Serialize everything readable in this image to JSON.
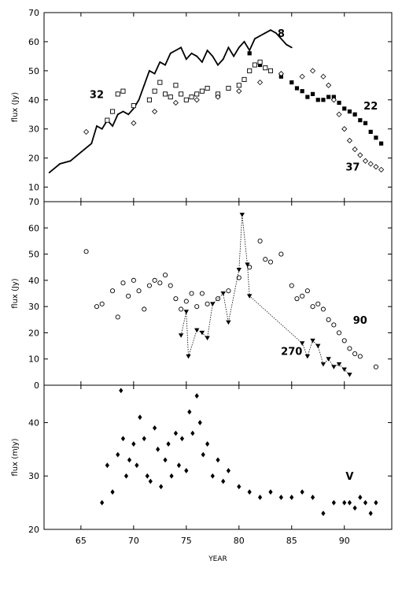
{
  "chart_data": [
    {
      "type": "scatter",
      "ylabel": "flux (Jy)",
      "ylim": [
        5,
        70
      ],
      "xlim": [
        61.5,
        94.5
      ],
      "yticks": [
        10,
        20,
        30,
        40,
        50,
        60,
        70
      ],
      "series": [
        {
          "name": "8",
          "kind": "line",
          "x": [
            62.0,
            63.0,
            64.0,
            65.0,
            66.0,
            66.5,
            67.0,
            67.5,
            68.0,
            68.5,
            69.0,
            69.5,
            70.0,
            70.5,
            71.0,
            71.5,
            72.0,
            72.5,
            73.0,
            73.5,
            74.0,
            74.5,
            75.0,
            75.5,
            76.0,
            76.5,
            77.0,
            77.5,
            78.0,
            78.5,
            79.0,
            79.5,
            80.0,
            80.5,
            81.0,
            81.5,
            82.0,
            82.5,
            83.0,
            83.5,
            84.0,
            84.5,
            85.0
          ],
          "y": [
            15,
            18,
            19,
            22,
            25,
            31,
            30,
            33,
            31,
            35,
            36,
            35,
            37,
            40,
            45,
            50,
            49,
            53,
            52,
            56,
            57,
            58,
            54,
            56,
            55,
            53,
            57,
            55,
            52,
            54,
            58,
            55,
            58,
            60,
            57,
            61,
            62,
            63,
            64,
            63,
            61,
            59,
            58
          ]
        },
        {
          "name": "22",
          "kind": "filled-squares",
          "x": [
            81.0,
            82.0,
            83.0,
            84.0,
            85.0,
            85.5,
            86.0,
            86.5,
            87.0,
            87.5,
            88.0,
            88.5,
            89.0,
            89.5,
            90.0,
            90.5,
            91.0,
            91.5,
            92.0,
            92.5,
            93.0,
            93.5
          ],
          "y": [
            56,
            52,
            50,
            48,
            46,
            44,
            43,
            41,
            42,
            40,
            40,
            41,
            41,
            39,
            37,
            36,
            35,
            33,
            32,
            29,
            27,
            25
          ]
        },
        {
          "name": "32",
          "kind": "open-squares",
          "x": [
            67.5,
            68.0,
            68.5,
            69.0,
            70.0,
            71.5,
            72.0,
            72.5,
            73.0,
            73.5,
            74.0,
            74.5,
            75.0,
            75.5,
            76.0,
            76.5,
            77.0,
            78.0,
            79.0,
            80.0,
            80.5,
            81.0,
            81.5,
            82.0,
            82.5,
            83.0
          ],
          "y": [
            33,
            36,
            42,
            43,
            38,
            40,
            43,
            46,
            42,
            41,
            45,
            42,
            40,
            41,
            42,
            43,
            44,
            42,
            44,
            45,
            47,
            50,
            52,
            53,
            51,
            50
          ]
        },
        {
          "name": "37",
          "kind": "open-diamonds",
          "x": [
            65.5,
            70.0,
            72.0,
            74.0,
            76.0,
            78.0,
            80.0,
            82.0,
            84.0,
            86.0,
            87.0,
            88.0,
            88.5,
            89.0,
            89.5,
            90.0,
            90.5,
            91.0,
            91.5,
            92.0,
            92.5,
            93.0,
            93.5
          ],
          "y": [
            29,
            32,
            36,
            39,
            40,
            41,
            43,
            46,
            49,
            48,
            50,
            48,
            45,
            40,
            35,
            30,
            26,
            23,
            21,
            19,
            18,
            17,
            16
          ]
        }
      ]
    },
    {
      "type": "scatter",
      "ylabel": "flux (Jy)",
      "ylim": [
        0,
        70
      ],
      "xlim": [
        61.5,
        94.5
      ],
      "yticks": [
        0,
        10,
        20,
        30,
        40,
        50,
        60,
        70
      ],
      "series": [
        {
          "name": "90",
          "kind": "open-circles",
          "x": [
            65.5,
            66.5,
            67.0,
            68.0,
            68.5,
            69.0,
            69.5,
            70.0,
            70.5,
            71.0,
            71.5,
            72.0,
            72.5,
            73.0,
            73.5,
            74.0,
            74.5,
            75.0,
            75.5,
            76.0,
            76.5,
            77.0,
            78.0,
            79.0,
            80.0,
            81.0,
            82.0,
            82.5,
            83.0,
            84.0,
            85.0,
            85.5,
            86.0,
            86.5,
            87.0,
            87.5,
            88.0,
            88.5,
            89.0,
            89.5,
            90.0,
            90.5,
            91.0,
            91.5,
            93.0
          ],
          "y": [
            51,
            30,
            31,
            36,
            26,
            39,
            34,
            40,
            36,
            29,
            38,
            40,
            39,
            42,
            38,
            33,
            29,
            32,
            35,
            30,
            35,
            31,
            33,
            36,
            41,
            45,
            55,
            48,
            47,
            50,
            38,
            33,
            34,
            36,
            30,
            31,
            29,
            25,
            23,
            20,
            17,
            14,
            12,
            11,
            7
          ]
        },
        {
          "name": "270",
          "kind": "triangles-dotted",
          "x": [
            74.5,
            75.0,
            75.2,
            76.0,
            76.5,
            77.0,
            77.5,
            78.5,
            79.0,
            80.0,
            80.3,
            80.8,
            81.0,
            86.0,
            86.5,
            87.0,
            87.5,
            88.0,
            88.5,
            89.0,
            89.5,
            90.0,
            90.5
          ],
          "y": [
            19,
            28,
            11,
            21,
            20,
            18,
            31,
            35,
            24,
            44,
            65,
            46,
            34,
            16,
            11,
            17,
            15,
            8,
            10,
            7,
            8,
            6,
            4
          ]
        }
      ]
    },
    {
      "type": "scatter",
      "ylabel": "flux (mJy)",
      "xlabel": "YEAR",
      "ylim": [
        20,
        47
      ],
      "xlim": [
        61.5,
        94.5
      ],
      "yticks": [
        20,
        30,
        40
      ],
      "xticks": [
        65,
        70,
        75,
        80,
        85,
        90
      ],
      "series": [
        {
          "name": "V",
          "kind": "filled-diamonds",
          "x": [
            67.0,
            67.5,
            68.0,
            68.5,
            68.8,
            69.0,
            69.3,
            69.6,
            70.0,
            70.3,
            70.6,
            71.0,
            71.3,
            71.6,
            72.0,
            72.3,
            72.6,
            73.0,
            73.3,
            73.6,
            74.0,
            74.3,
            74.6,
            75.0,
            75.3,
            75.6,
            76.0,
            76.3,
            76.6,
            77.0,
            77.5,
            78.0,
            78.5,
            79.0,
            80.0,
            81.0,
            82.0,
            83.0,
            84.0,
            85.0,
            86.0,
            87.0,
            88.0,
            89.0,
            90.0,
            90.5,
            91.0,
            91.5,
            92.0,
            92.5,
            93.0
          ],
          "y": [
            25,
            32,
            27,
            34,
            46,
            37,
            30,
            33,
            36,
            32,
            41,
            37,
            30,
            29,
            39,
            35,
            28,
            33,
            36,
            30,
            38,
            32,
            37,
            31,
            42,
            38,
            45,
            40,
            34,
            36,
            30,
            33,
            29,
            31,
            28,
            27,
            26,
            27,
            26,
            26,
            27,
            26,
            23,
            25,
            25,
            25,
            24,
            26,
            25,
            23,
            25
          ]
        }
      ]
    }
  ]
}
